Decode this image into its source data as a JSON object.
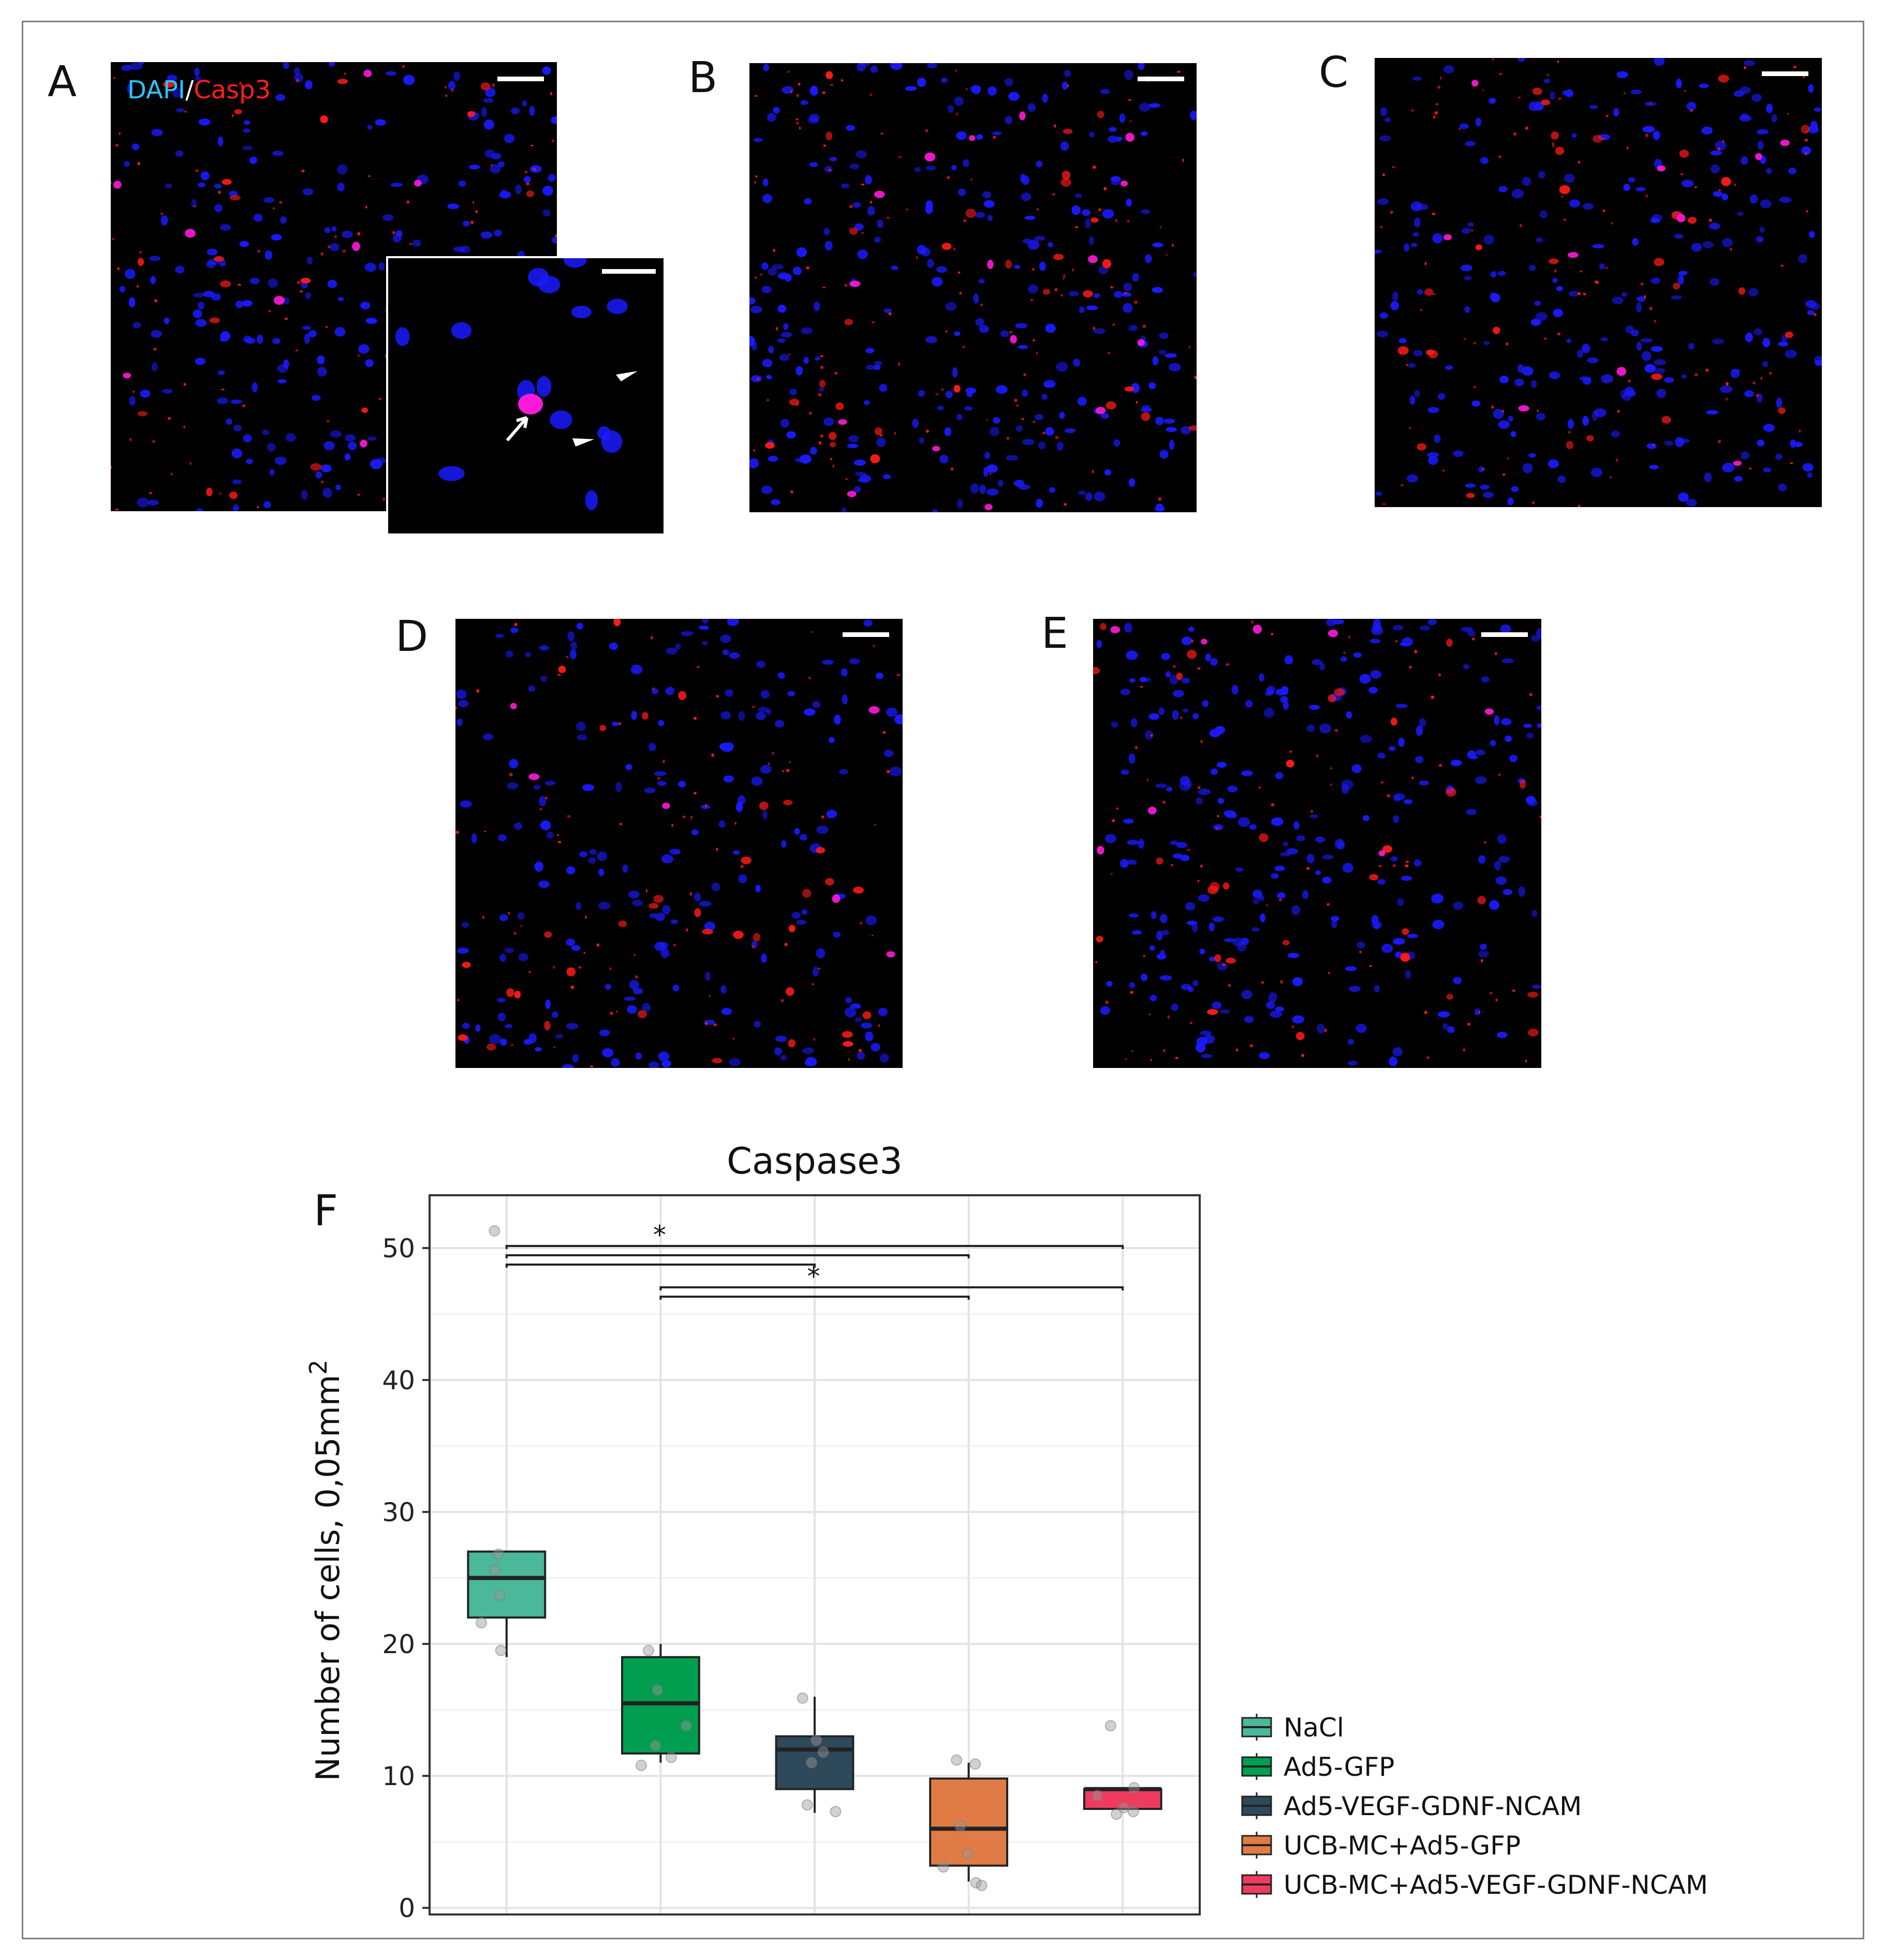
{
  "panels": {
    "A": {
      "letter": "A",
      "stain_dapi": "DAPI",
      "stain_sep": "/",
      "stain_casp": "Casp3"
    },
    "B": {
      "letter": "B"
    },
    "C": {
      "letter": "C"
    },
    "D": {
      "letter": "D"
    },
    "E": {
      "letter": "E"
    },
    "F": {
      "letter": "F"
    }
  },
  "colors": {
    "dapi": "#1a1aff",
    "casp3": "#ff1a1a",
    "merged": "#ff1ad9",
    "dapi_label": "#29c5f6",
    "casp_label": "#ff2020"
  },
  "chart_data": {
    "type": "boxplot",
    "title": "Caspase3",
    "ylabel_main": "Number of cells, 0,05mm",
    "ylabel_sup": "2",
    "xlabel": "",
    "ylim": [
      -0.5,
      54
    ],
    "yticks": [
      0,
      10,
      20,
      30,
      40,
      50
    ],
    "grid": true,
    "legend_position": "right-bottom",
    "groups": [
      {
        "name": "NaCl",
        "color": "#4bb89a",
        "min": 19,
        "q1": 22,
        "median": 25,
        "q3": 27,
        "max": 27,
        "points": [
          51.3,
          26.8,
          25.6,
          23.7,
          21.6,
          19.5
        ]
      },
      {
        "name": "Ad5-GFP",
        "color": "#009e4e",
        "min": 11,
        "q1": 11.7,
        "median": 15.5,
        "q3": 19,
        "max": 20,
        "points": [
          19.5,
          16.5,
          13.8,
          12.3,
          11.4,
          10.8
        ]
      },
      {
        "name": "Ad5-VEGF-GDNF-NCAM",
        "color": "#2e4a5a",
        "min": 7.2,
        "q1": 9,
        "median": 12,
        "q3": 13,
        "max": 16,
        "points": [
          15.9,
          12.7,
          11.8,
          11.0,
          7.8,
          7.3
        ]
      },
      {
        "name": "UCB-MC+Ad5-GFP",
        "color": "#e07b45",
        "min": 2,
        "q1": 3.2,
        "median": 6,
        "q3": 9.8,
        "max": 11,
        "points": [
          11.2,
          10.9,
          6.2,
          4.1,
          3.1,
          1.9,
          1.7
        ]
      },
      {
        "name": "UCB-MC+Ad5-VEGF-GDNF-NCAM",
        "color": "#ef3b5e",
        "min": 7.5,
        "q1": 7.5,
        "median": 9,
        "q3": 9,
        "max": 9,
        "points": [
          13.8,
          9.1,
          8.5,
          7.6,
          7.3,
          7.1
        ]
      }
    ],
    "significance": [
      {
        "label": "*",
        "pairs": [
          [
            "NaCl",
            "Ad5-VEGF-GDNF-NCAM"
          ],
          [
            "NaCl",
            "UCB-MC+Ad5-GFP"
          ],
          [
            "NaCl",
            "UCB-MC+Ad5-VEGF-GDNF-NCAM"
          ]
        ]
      },
      {
        "label": "*",
        "pairs": [
          [
            "Ad5-GFP",
            "UCB-MC+Ad5-GFP"
          ],
          [
            "Ad5-GFP",
            "UCB-MC+Ad5-VEGF-GDNF-NCAM"
          ]
        ]
      }
    ]
  }
}
